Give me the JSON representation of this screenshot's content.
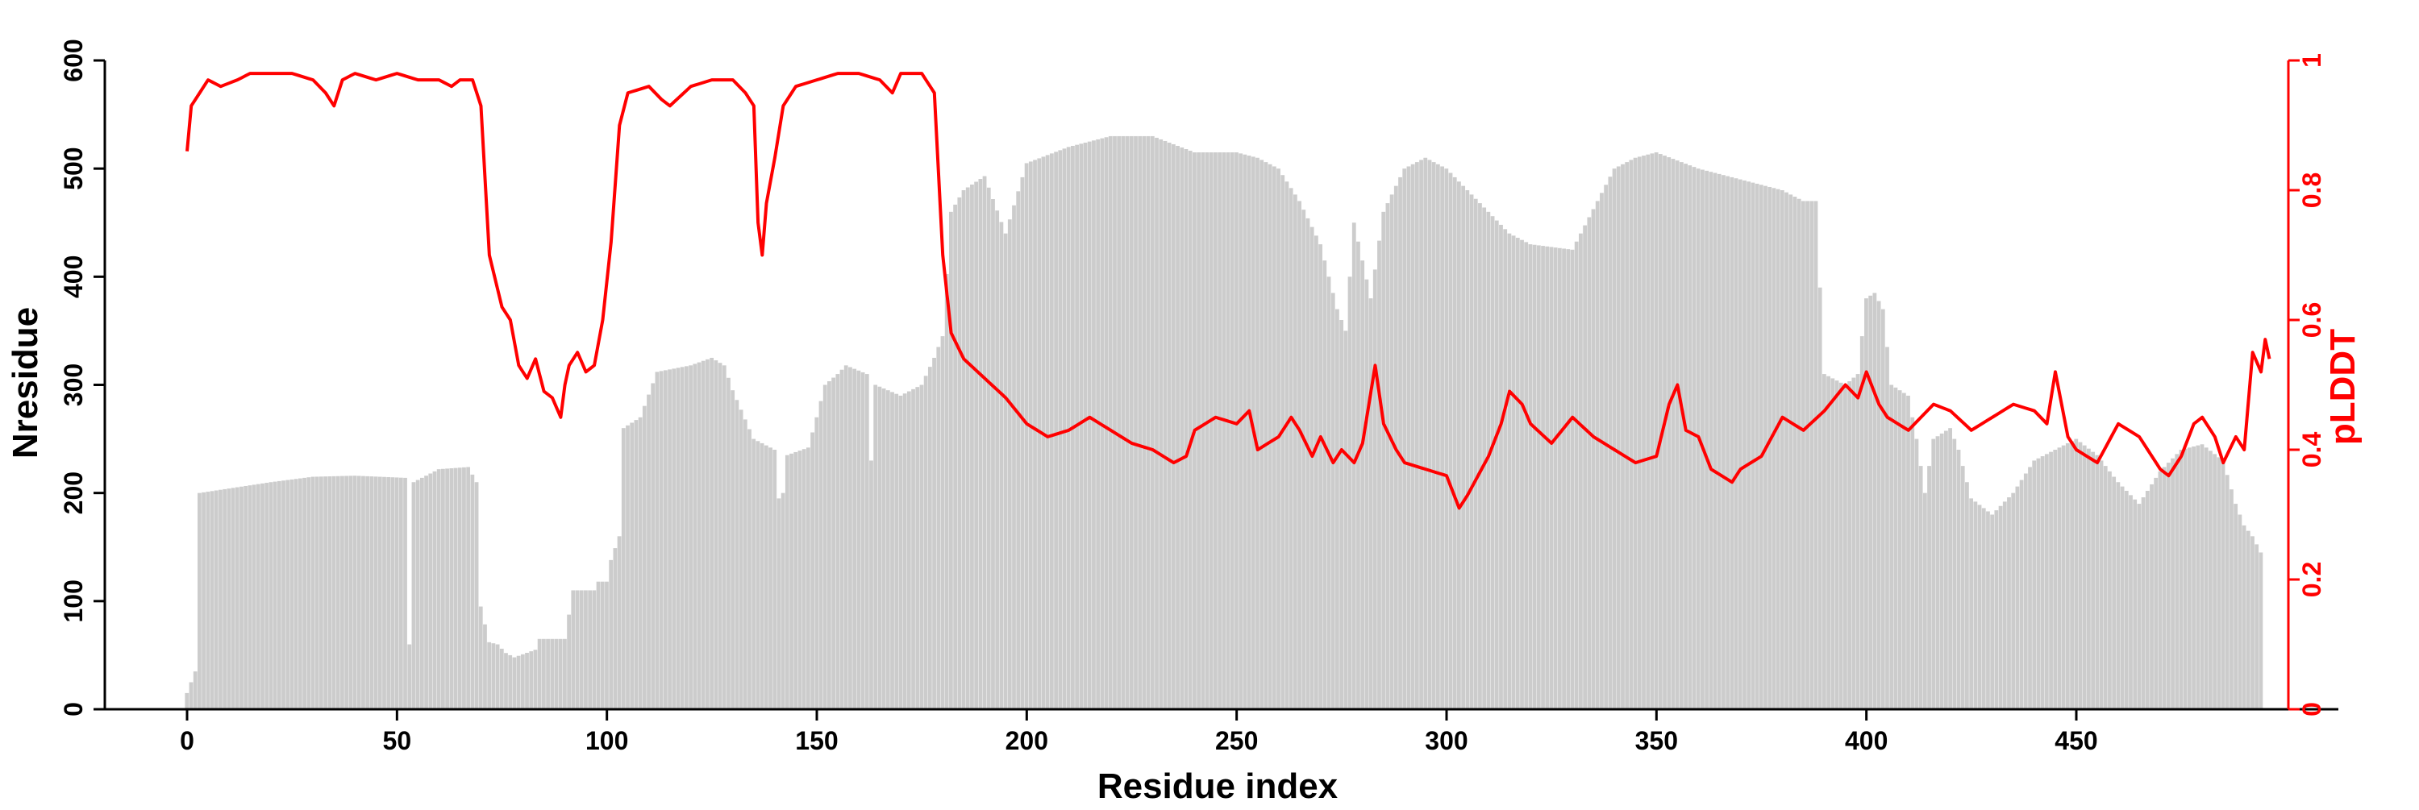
{
  "chart_data": {
    "type": "bar",
    "secondary_type": "line",
    "xlabel": "Residue index",
    "ylabel": "Nresidue",
    "y2label": "pLDDT",
    "xlim": [
      -20,
      500
    ],
    "ylim": [
      0,
      600
    ],
    "y2lim": [
      0,
      1
    ],
    "x_ticks": [
      0,
      50,
      100,
      150,
      200,
      250,
      300,
      350,
      400,
      450
    ],
    "y_ticks": [
      0,
      100,
      200,
      300,
      400,
      500,
      600
    ],
    "y2_ticks": [
      0,
      0.2,
      0.4,
      0.6,
      0.8,
      1
    ],
    "grid": false,
    "colors": {
      "bars": "#cccccc",
      "line": "#ff0000",
      "axis": "#000000",
      "y2_axis": "#ff0000"
    },
    "series": [
      {
        "type": "bar",
        "axis": "left",
        "anchors": [
          [
            0,
            15
          ],
          [
            1,
            25
          ],
          [
            2,
            35
          ],
          [
            3,
            200
          ],
          [
            20,
            210
          ],
          [
            30,
            215
          ],
          [
            40,
            216
          ],
          [
            52,
            214
          ],
          [
            53,
            60
          ],
          [
            54,
            210
          ],
          [
            60,
            222
          ],
          [
            67,
            224
          ],
          [
            69,
            210
          ],
          [
            70,
            95
          ],
          [
            72,
            62
          ],
          [
            74,
            60
          ],
          [
            76,
            52
          ],
          [
            78,
            48
          ],
          [
            83,
            55
          ],
          [
            84,
            65
          ],
          [
            90,
            65
          ],
          [
            92,
            110
          ],
          [
            97,
            110
          ],
          [
            98,
            118
          ],
          [
            100,
            118
          ],
          [
            101,
            138
          ],
          [
            103,
            160
          ],
          [
            104,
            260
          ],
          [
            108,
            270
          ],
          [
            112,
            312
          ],
          [
            120,
            318
          ],
          [
            125,
            325
          ],
          [
            128,
            318
          ],
          [
            130,
            295
          ],
          [
            135,
            250
          ],
          [
            140,
            240
          ],
          [
            141,
            195
          ],
          [
            142,
            200
          ],
          [
            143,
            235
          ],
          [
            148,
            242
          ],
          [
            150,
            270
          ],
          [
            152,
            300
          ],
          [
            155,
            310
          ],
          [
            157,
            318
          ],
          [
            162,
            310
          ],
          [
            163,
            230
          ],
          [
            164,
            300
          ],
          [
            170,
            290
          ],
          [
            175,
            300
          ],
          [
            178,
            325
          ],
          [
            180,
            345
          ],
          [
            182,
            460
          ],
          [
            185,
            480
          ],
          [
            190,
            493
          ],
          [
            195,
            440
          ],
          [
            200,
            505
          ],
          [
            210,
            520
          ],
          [
            220,
            530
          ],
          [
            230,
            530
          ],
          [
            240,
            515
          ],
          [
            250,
            515
          ],
          [
            255,
            510
          ],
          [
            260,
            500
          ],
          [
            265,
            470
          ],
          [
            270,
            430
          ],
          [
            272,
            400
          ],
          [
            274,
            370
          ],
          [
            276,
            350
          ],
          [
            278,
            450
          ],
          [
            282,
            380
          ],
          [
            285,
            460
          ],
          [
            290,
            500
          ],
          [
            295,
            510
          ],
          [
            300,
            500
          ],
          [
            305,
            480
          ],
          [
            310,
            460
          ],
          [
            315,
            440
          ],
          [
            320,
            430
          ],
          [
            330,
            425
          ],
          [
            340,
            500
          ],
          [
            345,
            510
          ],
          [
            350,
            515
          ],
          [
            360,
            500
          ],
          [
            370,
            490
          ],
          [
            380,
            480
          ],
          [
            385,
            470
          ],
          [
            388,
            470
          ],
          [
            390,
            310
          ],
          [
            395,
            300
          ],
          [
            398,
            310
          ],
          [
            400,
            380
          ],
          [
            402,
            385
          ],
          [
            404,
            370
          ],
          [
            406,
            300
          ],
          [
            410,
            290
          ],
          [
            412,
            250
          ],
          [
            414,
            200
          ],
          [
            416,
            250
          ],
          [
            420,
            260
          ],
          [
            422,
            240
          ],
          [
            425,
            195
          ],
          [
            430,
            180
          ],
          [
            435,
            200
          ],
          [
            440,
            230
          ],
          [
            445,
            240
          ],
          [
            450,
            250
          ],
          [
            455,
            235
          ],
          [
            460,
            210
          ],
          [
            465,
            190
          ],
          [
            470,
            220
          ],
          [
            475,
            240
          ],
          [
            480,
            245
          ],
          [
            485,
            230
          ],
          [
            488,
            190
          ],
          [
            490,
            170
          ],
          [
            492,
            160
          ],
          [
            494,
            145
          ]
        ],
        "notes": "Bar heights per residue (Nresidue), sampled at key points; intermediate residues linearly interpolated."
      },
      {
        "type": "line",
        "axis": "right",
        "anchors": [
          [
            0,
            0.86
          ],
          [
            1,
            0.93
          ],
          [
            3,
            0.95
          ],
          [
            5,
            0.97
          ],
          [
            8,
            0.96
          ],
          [
            12,
            0.97
          ],
          [
            15,
            0.98
          ],
          [
            20,
            0.98
          ],
          [
            25,
            0.98
          ],
          [
            30,
            0.97
          ],
          [
            33,
            0.95
          ],
          [
            35,
            0.93
          ],
          [
            37,
            0.97
          ],
          [
            40,
            0.98
          ],
          [
            45,
            0.97
          ],
          [
            50,
            0.98
          ],
          [
            55,
            0.97
          ],
          [
            60,
            0.97
          ],
          [
            63,
            0.96
          ],
          [
            65,
            0.97
          ],
          [
            68,
            0.97
          ],
          [
            70,
            0.93
          ],
          [
            72,
            0.7
          ],
          [
            75,
            0.62
          ],
          [
            77,
            0.6
          ],
          [
            79,
            0.53
          ],
          [
            81,
            0.51
          ],
          [
            83,
            0.54
          ],
          [
            85,
            0.49
          ],
          [
            87,
            0.48
          ],
          [
            89,
            0.45
          ],
          [
            90,
            0.5
          ],
          [
            91,
            0.53
          ],
          [
            93,
            0.55
          ],
          [
            95,
            0.52
          ],
          [
            97,
            0.53
          ],
          [
            99,
            0.6
          ],
          [
            101,
            0.72
          ],
          [
            103,
            0.9
          ],
          [
            105,
            0.95
          ],
          [
            110,
            0.96
          ],
          [
            113,
            0.94
          ],
          [
            115,
            0.93
          ],
          [
            120,
            0.96
          ],
          [
            125,
            0.97
          ],
          [
            130,
            0.97
          ],
          [
            133,
            0.95
          ],
          [
            135,
            0.93
          ],
          [
            136,
            0.75
          ],
          [
            137,
            0.7
          ],
          [
            138,
            0.78
          ],
          [
            140,
            0.85
          ],
          [
            142,
            0.93
          ],
          [
            145,
            0.96
          ],
          [
            150,
            0.97
          ],
          [
            155,
            0.98
          ],
          [
            160,
            0.98
          ],
          [
            165,
            0.97
          ],
          [
            168,
            0.95
          ],
          [
            170,
            0.98
          ],
          [
            175,
            0.98
          ],
          [
            178,
            0.95
          ],
          [
            180,
            0.7
          ],
          [
            182,
            0.58
          ],
          [
            185,
            0.54
          ],
          [
            190,
            0.51
          ],
          [
            195,
            0.48
          ],
          [
            200,
            0.44
          ],
          [
            205,
            0.42
          ],
          [
            210,
            0.43
          ],
          [
            215,
            0.45
          ],
          [
            220,
            0.43
          ],
          [
            225,
            0.41
          ],
          [
            230,
            0.4
          ],
          [
            235,
            0.38
          ],
          [
            238,
            0.39
          ],
          [
            240,
            0.43
          ],
          [
            245,
            0.45
          ],
          [
            250,
            0.44
          ],
          [
            253,
            0.46
          ],
          [
            255,
            0.4
          ],
          [
            260,
            0.42
          ],
          [
            263,
            0.45
          ],
          [
            265,
            0.43
          ],
          [
            268,
            0.39
          ],
          [
            270,
            0.42
          ],
          [
            273,
            0.38
          ],
          [
            275,
            0.4
          ],
          [
            278,
            0.38
          ],
          [
            280,
            0.41
          ],
          [
            283,
            0.53
          ],
          [
            285,
            0.44
          ],
          [
            288,
            0.4
          ],
          [
            290,
            0.38
          ],
          [
            295,
            0.37
          ],
          [
            300,
            0.36
          ],
          [
            303,
            0.31
          ],
          [
            305,
            0.33
          ],
          [
            310,
            0.39
          ],
          [
            313,
            0.44
          ],
          [
            315,
            0.49
          ],
          [
            318,
            0.47
          ],
          [
            320,
            0.44
          ],
          [
            325,
            0.41
          ],
          [
            330,
            0.45
          ],
          [
            335,
            0.42
          ],
          [
            340,
            0.4
          ],
          [
            345,
            0.38
          ],
          [
            350,
            0.39
          ],
          [
            353,
            0.47
          ],
          [
            355,
            0.5
          ],
          [
            357,
            0.43
          ],
          [
            360,
            0.42
          ],
          [
            363,
            0.37
          ],
          [
            368,
            0.35
          ],
          [
            370,
            0.37
          ],
          [
            375,
            0.39
          ],
          [
            380,
            0.45
          ],
          [
            385,
            0.43
          ],
          [
            390,
            0.46
          ],
          [
            395,
            0.5
          ],
          [
            398,
            0.48
          ],
          [
            400,
            0.52
          ],
          [
            403,
            0.47
          ],
          [
            405,
            0.45
          ],
          [
            410,
            0.43
          ],
          [
            413,
            0.45
          ],
          [
            416,
            0.47
          ],
          [
            420,
            0.46
          ],
          [
            425,
            0.43
          ],
          [
            430,
            0.45
          ],
          [
            435,
            0.47
          ],
          [
            440,
            0.46
          ],
          [
            443,
            0.44
          ],
          [
            445,
            0.52
          ],
          [
            448,
            0.42
          ],
          [
            450,
            0.4
          ],
          [
            455,
            0.38
          ],
          [
            460,
            0.44
          ],
          [
            465,
            0.42
          ],
          [
            470,
            0.37
          ],
          [
            472,
            0.36
          ],
          [
            475,
            0.39
          ],
          [
            478,
            0.44
          ],
          [
            480,
            0.45
          ],
          [
            483,
            0.42
          ],
          [
            485,
            0.38
          ],
          [
            488,
            0.42
          ],
          [
            490,
            0.4
          ],
          [
            492,
            0.55
          ],
          [
            494,
            0.52
          ],
          [
            495,
            0.57
          ],
          [
            496,
            0.54
          ]
        ],
        "notes": "pLDDT trace sampled at key points; intermediate residues linearly interpolated."
      }
    ]
  }
}
